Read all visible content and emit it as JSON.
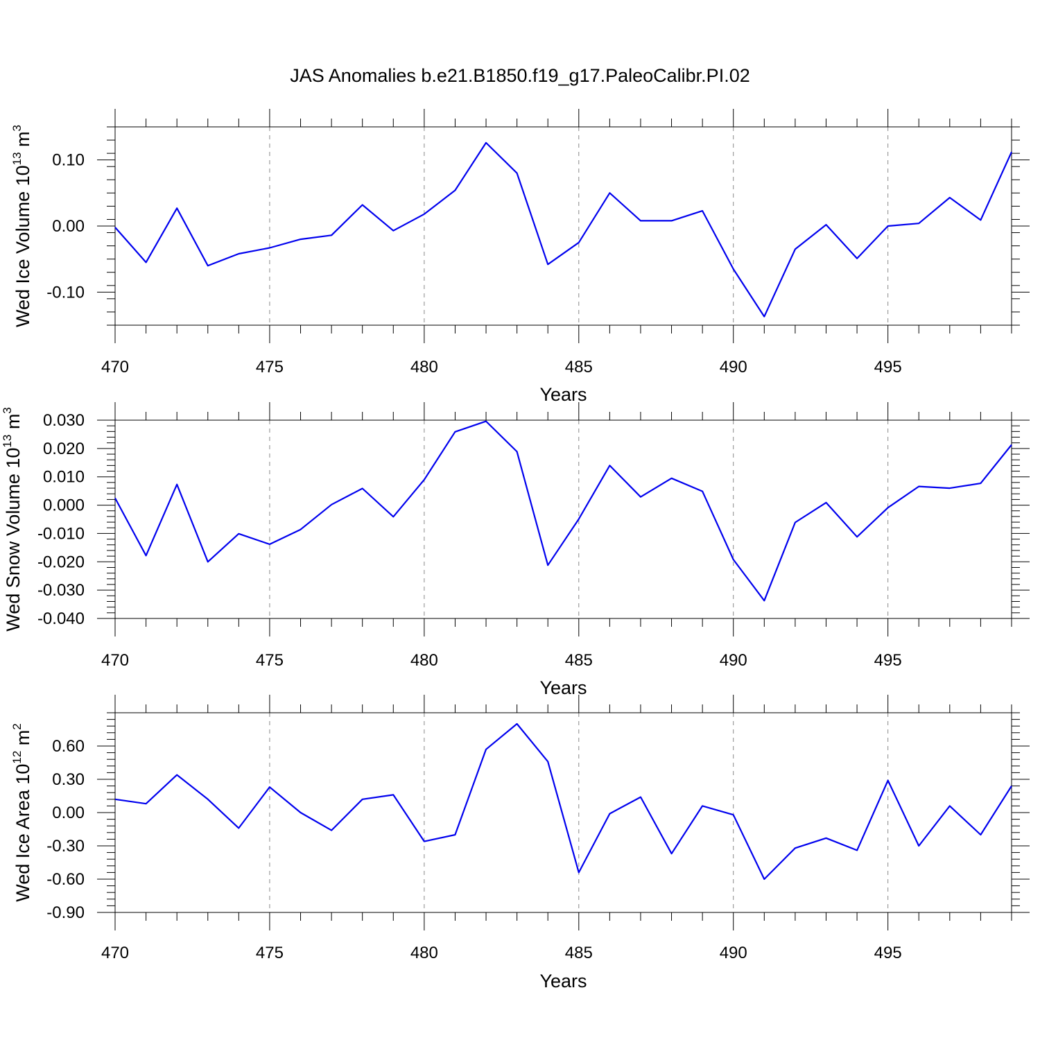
{
  "title": "JAS Anomalies b.e21.B1850.f19_g17.PaleoCalibr.PI.02",
  "colors": {
    "line": "#0000ee",
    "grid": "#888888",
    "axis": "#000000"
  },
  "chart_data": [
    {
      "type": "line",
      "xlabel": "Years",
      "ylabel": "Wed Ice Volume 10",
      "ylabel_exp": "13",
      "ylabel_unit": " m",
      "ylabel_unit_exp": "3",
      "xlim": [
        470,
        499
      ],
      "ylim": [
        -0.15,
        0.15
      ],
      "xticks": [
        470,
        475,
        480,
        485,
        490,
        495
      ],
      "yticks": [
        -0.1,
        0.0,
        0.1
      ],
      "ytick_labels": [
        "-0.10",
        "0.00",
        "0.10"
      ],
      "ytick_minor": 0.02,
      "grid": "vertical dashed at major x ticks",
      "x": [
        470,
        471,
        472,
        473,
        474,
        475,
        476,
        477,
        478,
        479,
        480,
        481,
        482,
        483,
        484,
        485,
        486,
        487,
        488,
        489,
        490,
        491,
        492,
        493,
        494,
        495,
        496,
        497,
        498,
        499
      ],
      "values": [
        -0.002,
        -0.055,
        0.027,
        -0.06,
        -0.042,
        -0.033,
        -0.02,
        -0.014,
        0.032,
        -0.007,
        0.018,
        0.054,
        0.126,
        0.08,
        -0.058,
        -0.025,
        0.05,
        0.008,
        0.008,
        0.023,
        -0.065,
        -0.137,
        -0.035,
        0.002,
        -0.049,
        0.0,
        0.004,
        0.043,
        0.009,
        0.112
      ]
    },
    {
      "type": "line",
      "xlabel": "Years",
      "ylabel": "Wed Snow Volume 10",
      "ylabel_exp": "13",
      "ylabel_unit": " m",
      "ylabel_unit_exp": "3",
      "xlim": [
        470,
        499
      ],
      "ylim": [
        -0.04,
        0.03
      ],
      "xticks": [
        470,
        475,
        480,
        485,
        490,
        495
      ],
      "yticks": [
        -0.04,
        -0.03,
        -0.02,
        -0.01,
        0.0,
        0.01,
        0.02,
        0.03
      ],
      "ytick_labels": [
        "-0.040",
        "-0.030",
        "-0.020",
        "-0.010",
        "0.000",
        "0.010",
        "0.020",
        "0.030"
      ],
      "ytick_minor": 0.002,
      "grid": "vertical dashed at major x ticks",
      "x": [
        470,
        471,
        472,
        473,
        474,
        475,
        476,
        477,
        478,
        479,
        480,
        481,
        482,
        483,
        484,
        485,
        486,
        487,
        488,
        489,
        490,
        491,
        492,
        493,
        494,
        495,
        496,
        497,
        498,
        499
      ],
      "values": [
        0.0025,
        -0.0178,
        0.0073,
        -0.02,
        -0.0101,
        -0.0138,
        -0.0086,
        0.0002,
        0.0059,
        -0.0041,
        0.009,
        0.0259,
        0.0296,
        0.0189,
        -0.0212,
        -0.0049,
        0.014,
        0.0029,
        0.0095,
        0.0049,
        -0.0192,
        -0.0337,
        -0.0061,
        0.0009,
        -0.0112,
        -0.0009,
        0.0066,
        0.006,
        0.0077,
        0.0213
      ]
    },
    {
      "type": "line",
      "xlabel": "Years",
      "ylabel": "Wed Ice Area 10",
      "ylabel_exp": "12",
      "ylabel_unit": " m",
      "ylabel_unit_exp": "2",
      "xlim": [
        470,
        499
      ],
      "ylim": [
        -0.9,
        0.9
      ],
      "xticks": [
        470,
        475,
        480,
        485,
        490,
        495
      ],
      "yticks": [
        -0.9,
        -0.6,
        -0.3,
        0.0,
        0.3,
        0.6
      ],
      "ytick_labels": [
        "-0.90",
        "-0.60",
        "-0.30",
        "0.00",
        "0.30",
        "0.60"
      ],
      "ytick_minor": 0.06,
      "grid": "vertical dashed at major x ticks",
      "x": [
        470,
        471,
        472,
        473,
        474,
        475,
        476,
        477,
        478,
        479,
        480,
        481,
        482,
        483,
        484,
        485,
        486,
        487,
        488,
        489,
        490,
        491,
        492,
        493,
        494,
        495,
        496,
        497,
        498,
        499
      ],
      "values": [
        0.12,
        0.08,
        0.34,
        0.12,
        -0.14,
        0.23,
        0.0,
        -0.16,
        0.12,
        0.16,
        -0.26,
        -0.2,
        0.57,
        0.8,
        0.46,
        -0.54,
        -0.01,
        0.14,
        -0.37,
        0.06,
        -0.02,
        -0.6,
        -0.32,
        -0.23,
        -0.34,
        0.29,
        -0.3,
        0.06,
        -0.2,
        0.24
      ]
    }
  ]
}
